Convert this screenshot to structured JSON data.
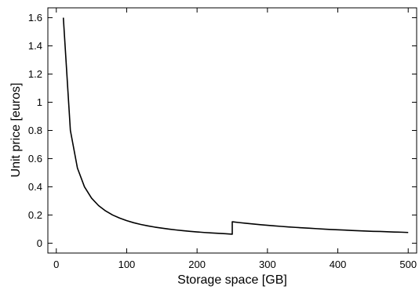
{
  "chart_data": {
    "type": "line",
    "title": "",
    "xlabel": "Storage space [GB]",
    "ylabel": "Unit price [euros]",
    "xlim": [
      -12,
      512
    ],
    "ylim": [
      -0.07,
      1.67
    ],
    "xticks": [
      0,
      100,
      200,
      300,
      400,
      500
    ],
    "xtick_labels": [
      "0",
      "100",
      "200",
      "300",
      "400",
      "500"
    ],
    "yticks": [
      0,
      0.2,
      0.4,
      0.6,
      0.8,
      1,
      1.2,
      1.4,
      1.6
    ],
    "ytick_labels": [
      "0",
      "0.2",
      "0.4",
      "0.6",
      "0.8",
      "1",
      "1.2",
      "1.4",
      "1.6"
    ],
    "grid": false,
    "legend": "none",
    "line_color": "#000000",
    "series": [
      {
        "x": [
          10,
          20,
          30,
          40,
          50,
          60,
          70,
          80,
          90,
          100,
          110,
          120,
          130,
          140,
          150,
          160,
          170,
          180,
          190,
          200,
          210,
          220,
          230,
          240,
          250,
          250,
          260,
          270,
          280,
          290,
          300,
          310,
          320,
          330,
          340,
          350,
          360,
          370,
          380,
          390,
          400,
          410,
          420,
          430,
          440,
          450,
          460,
          470,
          480,
          490,
          500
        ],
        "y": [
          1.6,
          0.8,
          0.533,
          0.4,
          0.32,
          0.267,
          0.229,
          0.2,
          0.178,
          0.16,
          0.145,
          0.133,
          0.123,
          0.114,
          0.107,
          0.1,
          0.094,
          0.089,
          0.084,
          0.08,
          0.076,
          0.073,
          0.07,
          0.067,
          0.064,
          0.152,
          0.146,
          0.141,
          0.136,
          0.131,
          0.127,
          0.123,
          0.119,
          0.115,
          0.112,
          0.109,
          0.106,
          0.103,
          0.1,
          0.097,
          0.095,
          0.093,
          0.09,
          0.088,
          0.086,
          0.084,
          0.083,
          0.081,
          0.079,
          0.078,
          0.076
        ]
      }
    ]
  }
}
